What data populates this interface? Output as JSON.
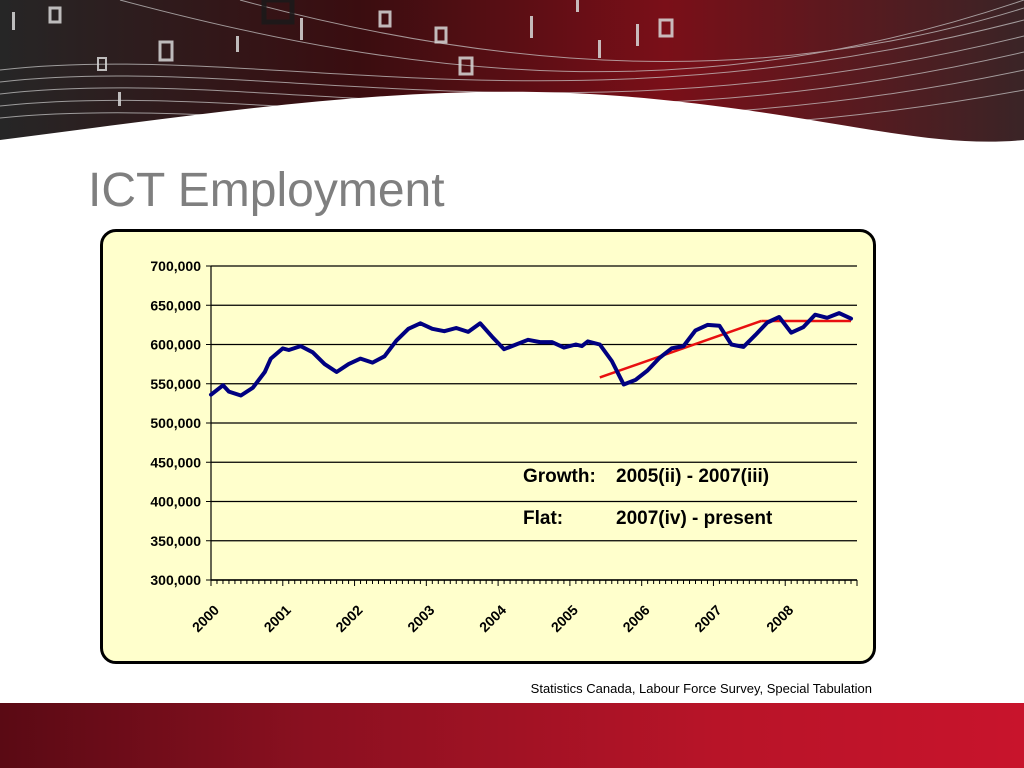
{
  "slide": {
    "title": "ICT Employment",
    "source": "Statistics Canada, Labour Force Survey, Special Tabulation"
  },
  "colors": {
    "series": "#000080",
    "trend": "#e81010",
    "panel": "#ffffcc",
    "title": "#7f7f7f",
    "footer": "#b81428"
  },
  "chart_data": {
    "type": "line",
    "title": "",
    "xlabel": "",
    "ylabel": "",
    "ylim": [
      300000,
      700000
    ],
    "grid": true,
    "y_ticks": [
      "300,000",
      "350,000",
      "400,000",
      "450,000",
      "500,000",
      "550,000",
      "600,000",
      "650,000",
      "700,000"
    ],
    "x_ticks": [
      "2000",
      "2001",
      "2002",
      "2003",
      "2004",
      "2005",
      "2006",
      "2007",
      "2008"
    ],
    "series": [
      {
        "name": "",
        "x": [
          "2000-01",
          "2000-03",
          "2000-04",
          "2000-06",
          "2000-08",
          "2000-10",
          "2000-11",
          "2001-01",
          "2001-02",
          "2001-04",
          "2001-06",
          "2001-08",
          "2001-10",
          "2001-12",
          "2002-02",
          "2002-04",
          "2002-06",
          "2002-08",
          "2002-10",
          "2002-12",
          "2003-02",
          "2003-04",
          "2003-06",
          "2003-08",
          "2003-10",
          "2003-12",
          "2004-02",
          "2004-04",
          "2004-06",
          "2004-08",
          "2004-10",
          "2004-12",
          "2005-02",
          "2005-03",
          "2005-04",
          "2005-06",
          "2005-08",
          "2005-10",
          "2005-12",
          "2006-02",
          "2006-04",
          "2006-06",
          "2006-08",
          "2006-10",
          "2006-12",
          "2007-02",
          "2007-04",
          "2007-06",
          "2007-08",
          "2007-10",
          "2007-12",
          "2008-02",
          "2008-04",
          "2008-06",
          "2008-08",
          "2008-10",
          "2008-12"
        ],
        "y": [
          536000,
          548000,
          540000,
          535000,
          545000,
          565000,
          582000,
          595000,
          593000,
          598000,
          590000,
          575000,
          565000,
          575000,
          582000,
          577000,
          585000,
          605000,
          620000,
          627000,
          620000,
          617000,
          621000,
          616000,
          627000,
          610000,
          594000,
          600000,
          606000,
          603000,
          603000,
          596000,
          600000,
          598000,
          604000,
          600000,
          579000,
          549000,
          555000,
          567000,
          583000,
          595000,
          598000,
          618000,
          625000,
          624000,
          600000,
          597000,
          612000,
          628000,
          635000,
          615000,
          622000,
          638000,
          634000,
          640000,
          633000
        ]
      }
    ],
    "annotations": [
      {
        "label": "Growth:",
        "period": "2005(ii) - 2007(iii)"
      },
      {
        "label": "Flat:",
        "period": "2007(iv) - present"
      }
    ],
    "trend_lines": [
      {
        "x": [
          "2005-06",
          "2007-09"
        ],
        "y": [
          558000,
          630000
        ]
      },
      {
        "x": [
          "2007-09",
          "2008-12"
        ],
        "y": [
          630000,
          630000
        ]
      }
    ]
  }
}
